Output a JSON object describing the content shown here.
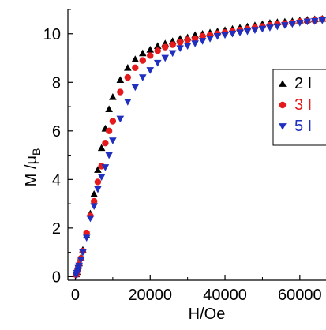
{
  "chart_data": {
    "type": "scatter",
    "xlabel": "H/Oe",
    "ylabel": {
      "main": "M /μ",
      "sub": "B"
    },
    "xlim": [
      -2000,
      67000
    ],
    "ylim": [
      -0.15,
      11.0
    ],
    "xticks": [
      0,
      20000,
      40000,
      60000
    ],
    "xtick_labels": [
      "0",
      "20000",
      "40000",
      "60000"
    ],
    "yticks": [
      0,
      2,
      4,
      6,
      8,
      10
    ],
    "ytick_labels": [
      "0",
      "2",
      "4",
      "6",
      "8",
      "10"
    ],
    "legend_position": "right, clipped at edge",
    "series": [
      {
        "name": "2 I",
        "marker": "triangle-up",
        "color": "#000000",
        "x": [
          200,
          400,
          600,
          800,
          1000,
          1500,
          2000,
          3000,
          4000,
          5000,
          6000,
          7000,
          8000,
          9000,
          10000,
          12000,
          14000,
          16000,
          18000,
          20000,
          22000,
          24000,
          26000,
          28000,
          30000,
          32000,
          34000,
          36000,
          38000,
          40000,
          42000,
          44000,
          46000,
          48000,
          50000,
          52000,
          54000,
          56000,
          58000,
          60000,
          62000,
          64000,
          66000
        ],
        "y": [
          0.1,
          0.2,
          0.3,
          0.45,
          0.55,
          0.8,
          1.1,
          1.7,
          2.6,
          3.4,
          4.4,
          5.3,
          6.1,
          6.9,
          7.4,
          8.1,
          8.6,
          8.95,
          9.2,
          9.35,
          9.5,
          9.6,
          9.7,
          9.8,
          9.85,
          9.95,
          10.0,
          10.05,
          10.1,
          10.15,
          10.2,
          10.25,
          10.3,
          10.35,
          10.4,
          10.45,
          10.48,
          10.5,
          10.52,
          10.55,
          10.58,
          10.6,
          10.62
        ]
      },
      {
        "name": "3 I",
        "marker": "circle",
        "color": "#e41a1c",
        "x": [
          200,
          400,
          600,
          800,
          1000,
          1500,
          2000,
          3000,
          4000,
          5000,
          6000,
          7000,
          8000,
          9000,
          10000,
          12000,
          14000,
          16000,
          18000,
          20000,
          22000,
          24000,
          26000,
          28000,
          30000,
          32000,
          34000,
          36000,
          38000,
          40000,
          42000,
          44000,
          46000,
          48000,
          50000,
          52000,
          54000,
          56000,
          58000,
          60000,
          62000,
          64000,
          66000
        ],
        "y": [
          0.08,
          0.18,
          0.28,
          0.4,
          0.5,
          0.75,
          1.05,
          1.8,
          2.5,
          3.1,
          3.9,
          4.55,
          5.5,
          6.0,
          6.4,
          7.6,
          8.2,
          8.6,
          8.9,
          9.1,
          9.3,
          9.45,
          9.55,
          9.65,
          9.75,
          9.8,
          9.9,
          9.95,
          10.0,
          10.05,
          10.1,
          10.15,
          10.2,
          10.25,
          10.3,
          10.35,
          10.4,
          10.42,
          10.45,
          10.5,
          10.52,
          10.55,
          10.6
        ]
      },
      {
        "name": "5 I",
        "marker": "triangle-down",
        "color": "#1f2fbf",
        "x": [
          200,
          400,
          600,
          800,
          1000,
          1500,
          2000,
          3000,
          4000,
          5000,
          6000,
          7000,
          8000,
          9000,
          10000,
          12000,
          14000,
          16000,
          18000,
          20000,
          22000,
          24000,
          26000,
          28000,
          30000,
          32000,
          34000,
          36000,
          38000,
          40000,
          42000,
          44000,
          46000,
          48000,
          50000,
          52000,
          54000,
          56000,
          58000,
          60000,
          62000,
          64000,
          66000
        ],
        "y": [
          0.07,
          0.15,
          0.25,
          0.35,
          0.45,
          0.7,
          1.0,
          1.6,
          2.4,
          2.9,
          3.6,
          4.1,
          4.5,
          5.0,
          5.6,
          6.5,
          7.2,
          7.8,
          8.2,
          8.5,
          8.8,
          9.0,
          9.2,
          9.4,
          9.5,
          9.6,
          9.7,
          9.8,
          9.9,
          9.95,
          10.0,
          10.05,
          10.1,
          10.15,
          10.2,
          10.25,
          10.3,
          10.35,
          10.4,
          10.45,
          10.5,
          10.52,
          10.55
        ]
      }
    ]
  }
}
